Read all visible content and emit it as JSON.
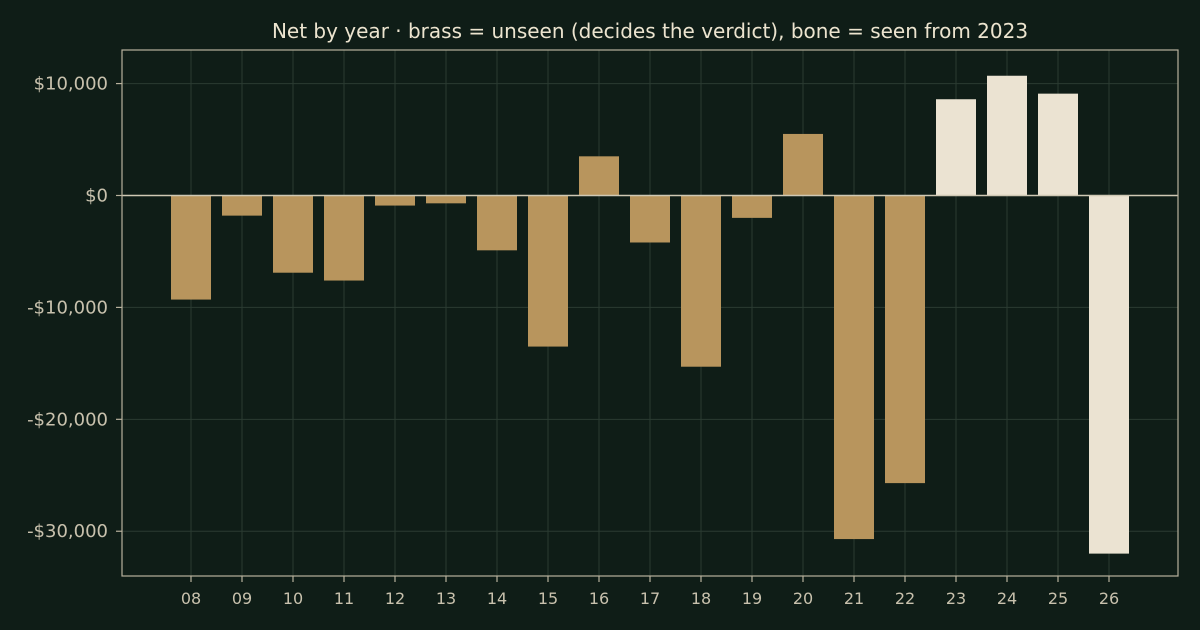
{
  "chart_data": {
    "type": "bar",
    "title": "Net by year  ·  brass = unseen (decides the verdict), bone = seen from 2023",
    "xlabel": "",
    "ylabel": "",
    "categories": [
      "08",
      "09",
      "10",
      "11",
      "12",
      "13",
      "14",
      "15",
      "16",
      "17",
      "18",
      "19",
      "20",
      "21",
      "22",
      "23",
      "24",
      "25",
      "26"
    ],
    "values": [
      -9300,
      -1800,
      -6900,
      -7600,
      -900,
      -700,
      -4900,
      -13500,
      3500,
      -4200,
      -15300,
      -2000,
      5500,
      -30700,
      -25700,
      8600,
      10700,
      9100,
      -32000
    ],
    "groups": [
      "unseen",
      "unseen",
      "unseen",
      "unseen",
      "unseen",
      "unseen",
      "unseen",
      "unseen",
      "unseen",
      "unseen",
      "unseen",
      "unseen",
      "unseen",
      "unseen",
      "unseen",
      "seen",
      "seen",
      "seen",
      "seen"
    ],
    "colors": {
      "unseen": "#b8955d",
      "seen": "#ebe3d2"
    },
    "ylim": [
      -34000,
      13000
    ],
    "yticks": [
      10000,
      0,
      -10000,
      -20000,
      -30000
    ],
    "ytick_labels": [
      "$10,000",
      "$0",
      "-$10,000",
      "-$20,000",
      "-$30,000"
    ],
    "grid": true
  }
}
